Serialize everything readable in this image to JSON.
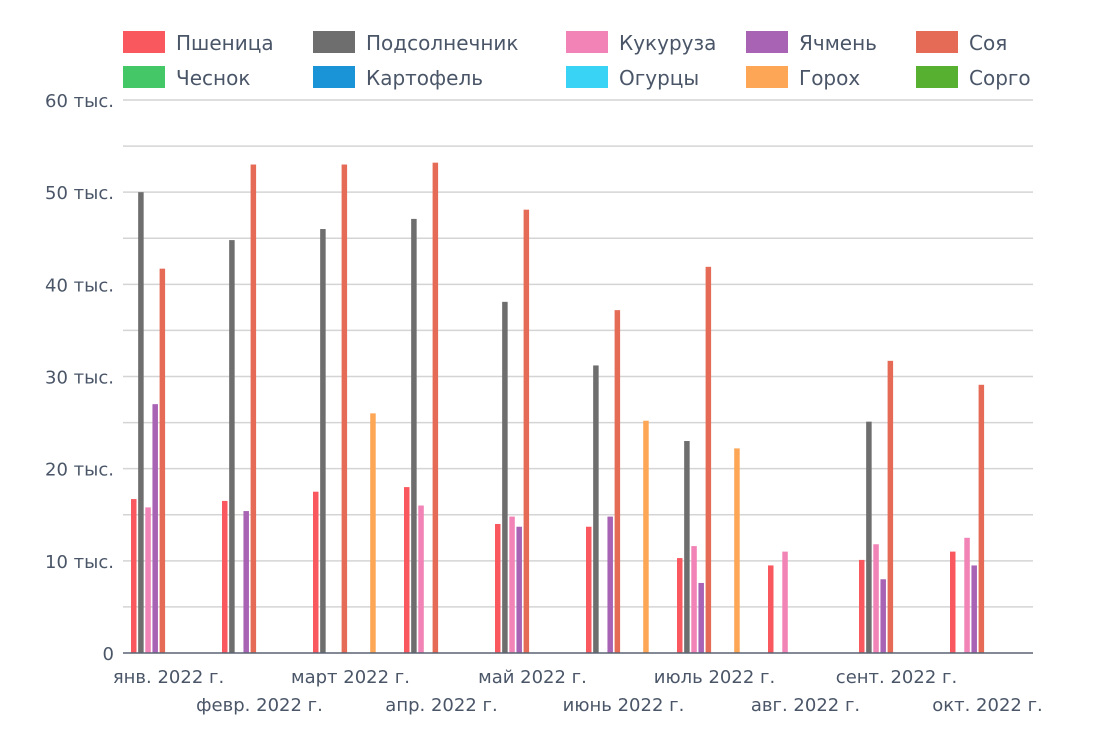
{
  "chart_data": {
    "type": "bar",
    "categories": [
      "янв. 2022 г.",
      "февр. 2022 г.",
      "март 2022 г.",
      "апр. 2022 г.",
      "май 2022 г.",
      "июнь 2022 г.",
      "июль 2022 г.",
      "авг. 2022 г.",
      "сент. 2022 г.",
      "окт. 2022 г."
    ],
    "ylim": [
      0,
      60000
    ],
    "y_ticks": [
      {
        "value": 0,
        "label": "0"
      },
      {
        "value": 10000,
        "label": "10 тыс."
      },
      {
        "value": 20000,
        "label": "20 тыс."
      },
      {
        "value": 30000,
        "label": "30 тыс."
      },
      {
        "value": 40000,
        "label": "40 тыс."
      },
      {
        "value": 50000,
        "label": "50 тыс."
      },
      {
        "value": 60000,
        "label": "60 тыс."
      }
    ],
    "grid": true,
    "legend_position": "top",
    "series": [
      {
        "name": "Пшеница",
        "color": "#f9585f",
        "values": [
          16700,
          16500,
          17500,
          18000,
          14000,
          13700,
          10300,
          9500,
          10100,
          11000
        ]
      },
      {
        "name": "Подсолнечник",
        "color": "#6e6e6e",
        "values": [
          50000,
          44800,
          46000,
          47100,
          38100,
          31200,
          23000,
          null,
          25100,
          null
        ]
      },
      {
        "name": "Кукуруза",
        "color": "#f283b6",
        "values": [
          15800,
          null,
          null,
          16000,
          14800,
          null,
          11600,
          11000,
          11800,
          12500
        ]
      },
      {
        "name": "Ячмень",
        "color": "#a863b5",
        "values": [
          27000,
          15400,
          null,
          null,
          13700,
          14800,
          7600,
          null,
          8000,
          9500
        ]
      },
      {
        "name": "Соя",
        "color": "#e56b56",
        "values": [
          41700,
          53000,
          53000,
          53200,
          48100,
          37200,
          41900,
          null,
          31700,
          29100
        ]
      },
      {
        "name": "Чеснок",
        "color": "#44c767",
        "values": [
          null,
          null,
          null,
          null,
          null,
          null,
          null,
          null,
          null,
          null
        ]
      },
      {
        "name": "Картофель",
        "color": "#1a94d6",
        "values": [
          null,
          null,
          null,
          null,
          null,
          null,
          null,
          null,
          null,
          null
        ]
      },
      {
        "name": "Огурцы",
        "color": "#39d3f5",
        "values": [
          null,
          null,
          null,
          null,
          null,
          null,
          null,
          null,
          null,
          null
        ]
      },
      {
        "name": "Горох",
        "color": "#fca656",
        "values": [
          null,
          null,
          26000,
          null,
          null,
          25200,
          22200,
          null,
          null,
          null
        ]
      },
      {
        "name": "Сорго",
        "color": "#58b031",
        "values": [
          null,
          null,
          null,
          null,
          null,
          null,
          null,
          null,
          null,
          null
        ]
      }
    ]
  }
}
